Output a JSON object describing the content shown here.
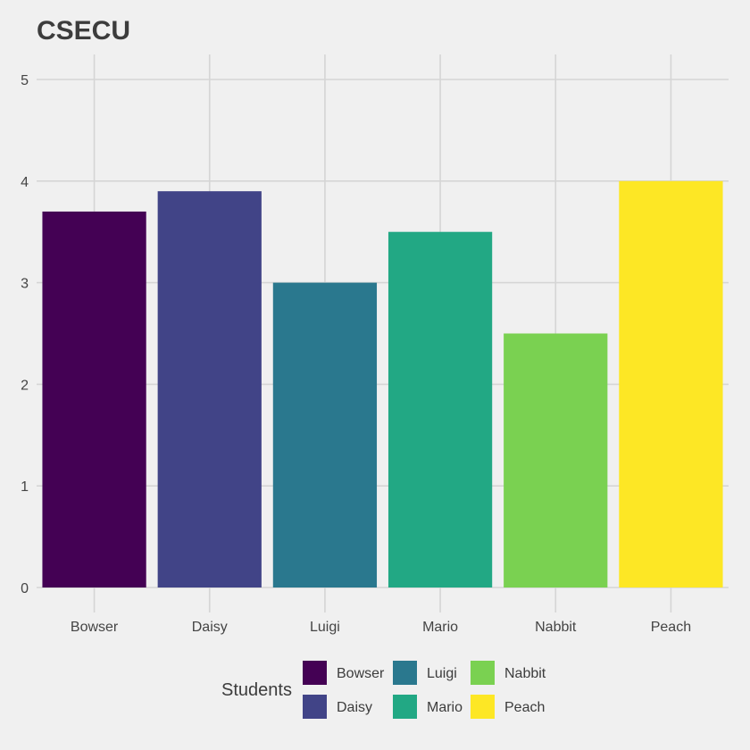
{
  "chart_data": {
    "type": "bar",
    "title": "CSECU",
    "xlabel": "",
    "ylabel": "",
    "categories": [
      "Bowser",
      "Daisy",
      "Luigi",
      "Mario",
      "Nabbit",
      "Peach"
    ],
    "values": [
      3.7,
      3.9,
      3.0,
      3.5,
      2.5,
      4.0
    ],
    "colors": [
      "#440154",
      "#414487",
      "#2a788e",
      "#22a884",
      "#7ad151",
      "#fde725"
    ],
    "ylim": [
      0,
      5
    ],
    "yticks": [
      0,
      1,
      2,
      3,
      4,
      5
    ],
    "grid": true,
    "legend": {
      "title": "Students",
      "placement": "bottom",
      "entries": [
        "Bowser",
        "Daisy",
        "Luigi",
        "Mario",
        "Nabbit",
        "Peach"
      ]
    }
  },
  "theme": {
    "background": "#f0f0f0",
    "grid_color": "#d5d5d5",
    "text_color": "#444444"
  }
}
